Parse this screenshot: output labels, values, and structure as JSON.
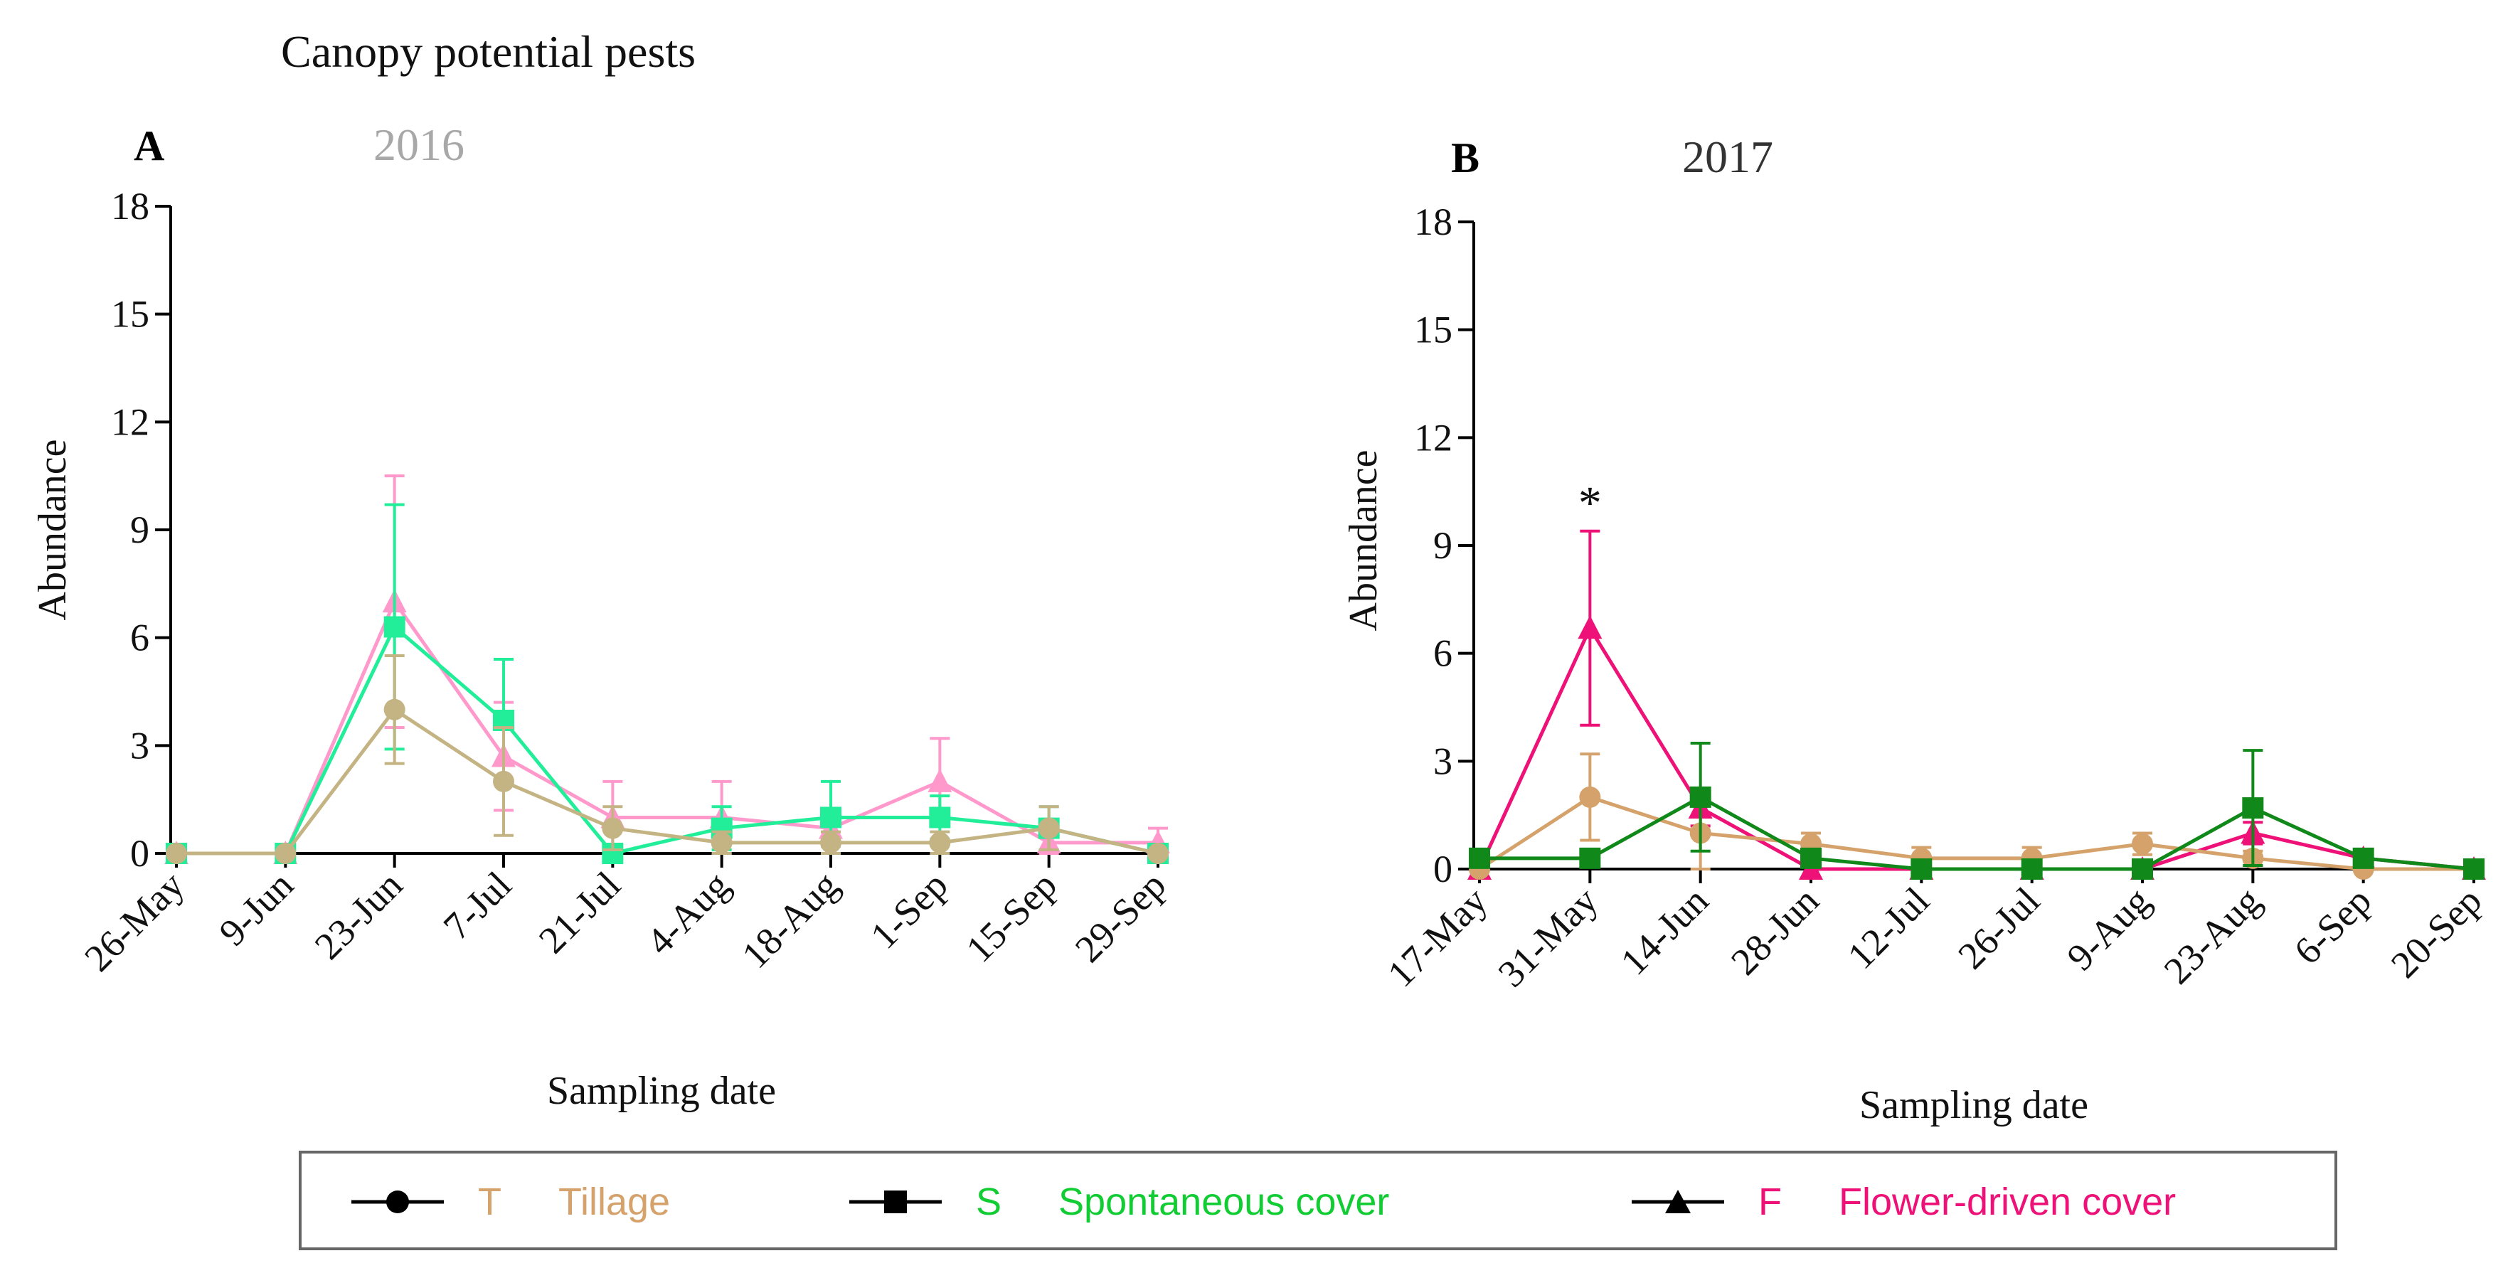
{
  "figure_title": "Canopy potential pests",
  "colors": {
    "T": "#d4a26a",
    "S2016": "#22ee99",
    "F2016": "#ff99cc",
    "T2016": "#c4b383",
    "S2017": "#11881a",
    "F2017": "#ee1177",
    "T2017": "#d4a26a",
    "axis": "#000000"
  },
  "legend": {
    "items": [
      {
        "code": "T",
        "label": "Tillage",
        "marker": "circle",
        "color": "#d4a26a"
      },
      {
        "code": "S",
        "label": "Spontaneous cover",
        "marker": "square",
        "color": "#11cc33"
      },
      {
        "code": "F",
        "label": "Flower-driven cover",
        "marker": "triangle",
        "color": "#ee1177"
      }
    ]
  },
  "chart_data": [
    {
      "type": "line",
      "panel": "A",
      "title": "2016",
      "title_color": "#a8a8a8",
      "xlabel": "Sampling date",
      "ylabel": "Abundance",
      "ylim": [
        0,
        18
      ],
      "yticks": [
        0,
        3,
        6,
        9,
        12,
        15,
        18
      ],
      "categories": [
        "26-May",
        "9-Jun",
        "23-Jun",
        "7-Jul",
        "21-Jul",
        "4-Aug",
        "18-Aug",
        "1-Sep",
        "15-Sep",
        "29-Sep"
      ],
      "series": [
        {
          "name": "F",
          "marker": "triangle",
          "color": "#ff99cc",
          "values": [
            0,
            0,
            7.0,
            2.7,
            1.0,
            1.0,
            0.7,
            2.0,
            0.3,
            0.3
          ],
          "errors": [
            0,
            0,
            3.5,
            1.5,
            1.0,
            1.0,
            0.5,
            1.2,
            0.4,
            0.4
          ]
        },
        {
          "name": "S",
          "marker": "square",
          "color": "#22ee99",
          "values": [
            0,
            0,
            6.3,
            3.7,
            0,
            0.7,
            1.0,
            1.0,
            0.7,
            0
          ],
          "errors": [
            0,
            0,
            3.4,
            1.7,
            0,
            0.6,
            1.0,
            0.6,
            0.6,
            0
          ]
        },
        {
          "name": "T",
          "marker": "circle",
          "color": "#c4b383",
          "values": [
            0,
            0,
            4.0,
            2.0,
            0.7,
            0.3,
            0.3,
            0.3,
            0.7,
            0
          ],
          "errors": [
            0,
            0,
            1.5,
            1.5,
            0.6,
            0.3,
            0.3,
            0.3,
            0.6,
            0
          ]
        }
      ]
    },
    {
      "type": "line",
      "panel": "B",
      "title": "2017",
      "title_color": "#333333",
      "xlabel": "Sampling date",
      "ylabel": "Abundance",
      "ylim": [
        0,
        18
      ],
      "yticks": [
        0,
        3,
        6,
        9,
        12,
        15,
        18
      ],
      "categories": [
        "17-May",
        "31-May",
        "14-Jun",
        "28-Jun",
        "12-Jul",
        "26-Jul",
        "9-Aug",
        "23-Aug",
        "6-Sep",
        "20-Sep"
      ],
      "annotations": [
        {
          "category": "31-May",
          "text": "*"
        }
      ],
      "series": [
        {
          "name": "F",
          "marker": "triangle",
          "color": "#ee1177",
          "values": [
            0,
            6.7,
            1.7,
            0,
            0,
            0,
            0,
            1.0,
            0.3,
            0
          ],
          "errors": [
            0,
            2.7,
            0.5,
            0,
            0,
            0,
            0,
            0.3,
            0.2,
            0
          ]
        },
        {
          "name": "T",
          "marker": "circle",
          "color": "#d4a26a",
          "values": [
            0,
            2.0,
            1.0,
            0.7,
            0.3,
            0.3,
            0.7,
            0.3,
            0,
            0
          ],
          "errors": [
            0,
            1.2,
            1.2,
            0.3,
            0.3,
            0.3,
            0.3,
            0.2,
            0,
            0
          ]
        },
        {
          "name": "S",
          "marker": "square",
          "color": "#11881a",
          "values": [
            0.3,
            0.3,
            2.0,
            0.3,
            0,
            0,
            0,
            1.7,
            0.3,
            0
          ],
          "errors": [
            0,
            0,
            1.5,
            0,
            0,
            0,
            0,
            1.6,
            0,
            0
          ]
        }
      ]
    }
  ]
}
